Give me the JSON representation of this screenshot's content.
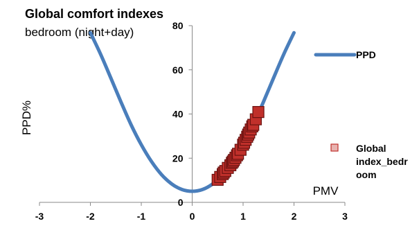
{
  "chart_data": {
    "type": "scatter",
    "title": "Global comfort indexes",
    "subtitle": "bedroom (night+day)",
    "xlabel": "PMV",
    "ylabel": "PPD%",
    "xlim": [
      -3,
      3
    ],
    "ylim": [
      0,
      80
    ],
    "xticks": [
      "-3",
      "-2",
      "-1",
      "0",
      "1",
      "2",
      "3"
    ],
    "yticks": [
      "0",
      "20",
      "40",
      "60",
      "80"
    ],
    "legend_position": "right",
    "series": [
      {
        "name": "PPD",
        "kind": "line",
        "color": "#4a7ebb",
        "x": [
          -2.0,
          -1.8,
          -1.6,
          -1.4,
          -1.2,
          -1.0,
          -0.8,
          -0.6,
          -0.4,
          -0.2,
          0.0,
          0.2,
          0.4,
          0.6,
          0.8,
          1.0,
          1.2,
          1.4,
          1.6,
          1.8,
          2.0
        ],
        "values": [
          76.8,
          67.1,
          56.4,
          45.5,
          35.1,
          26.1,
          18.5,
          12.5,
          8.3,
          5.8,
          5.0,
          5.8,
          8.3,
          12.5,
          18.5,
          26.1,
          35.1,
          45.5,
          56.4,
          67.1,
          76.8
        ]
      },
      {
        "name": "Global index_bedroom",
        "kind": "scatter",
        "color": "#c0302b",
        "x": [
          0.5,
          0.55,
          0.6,
          0.62,
          0.65,
          0.7,
          0.75,
          0.78,
          0.8,
          0.82,
          0.85,
          0.88,
          0.9,
          0.95,
          1.0,
          1.02,
          1.05,
          1.08,
          1.1,
          1.12,
          1.15,
          1.18,
          1.2,
          1.25,
          1.3
        ],
        "values": [
          10.2,
          11.5,
          12.8,
          13.5,
          14.2,
          15.6,
          16.8,
          17.9,
          18.5,
          19.2,
          20.2,
          21.3,
          22.0,
          23.8,
          26.1,
          27.0,
          28.3,
          29.7,
          30.7,
          31.6,
          33.0,
          34.4,
          35.1,
          37.6,
          40.9
        ]
      }
    ]
  }
}
